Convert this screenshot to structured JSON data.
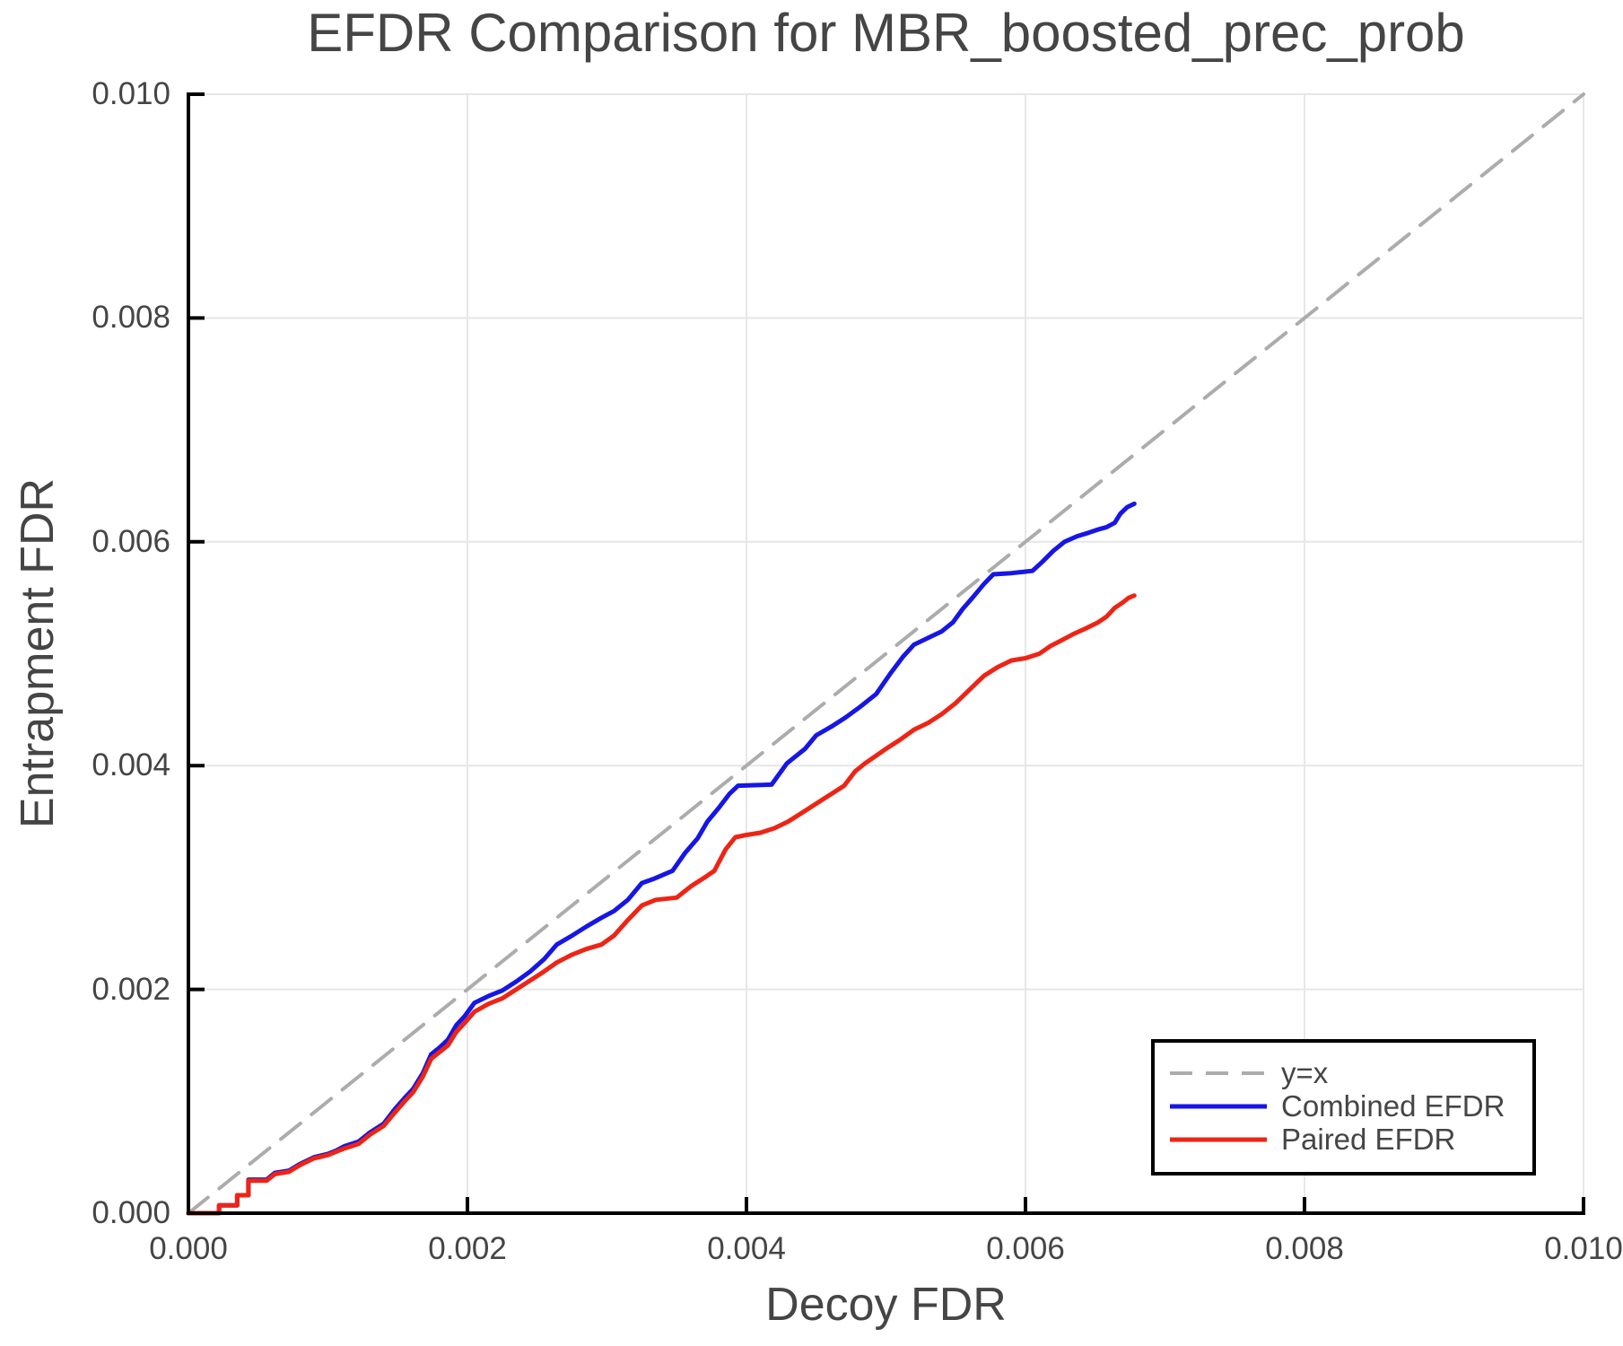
{
  "chart_data": {
    "type": "line",
    "title": "EFDR Comparison for MBR_boosted_prec_prob",
    "xlabel": "Decoy FDR",
    "ylabel": "Entrapment FDR",
    "xlim": [
      0.0,
      0.01
    ],
    "ylim": [
      0.0,
      0.01
    ],
    "xticks": [
      0.0,
      0.002,
      0.004,
      0.006,
      0.008,
      0.01
    ],
    "yticks": [
      0.0,
      0.002,
      0.004,
      0.006,
      0.008,
      0.01
    ],
    "xtick_labels": [
      "0.000",
      "0.002",
      "0.004",
      "0.006",
      "0.008",
      "0.010"
    ],
    "ytick_labels": [
      "0.000",
      "0.002",
      "0.004",
      "0.006",
      "0.008",
      "0.010"
    ],
    "grid": true,
    "legend_position": "lower right",
    "colors": {
      "grid": "#E7E7E7",
      "spine": "#000000",
      "text": "#454545",
      "background": "#FFFFFF"
    },
    "series": [
      {
        "name": "y=x",
        "role": "reference-diagonal",
        "color": "#ACACAC",
        "width": 4,
        "dash": [
          28,
          16
        ],
        "points": [
          [
            0.0,
            0.0
          ],
          [
            0.01,
            0.01
          ]
        ]
      },
      {
        "name": "Combined EFDR",
        "role": "data",
        "color": "#1616E6",
        "width": 5,
        "points": [
          [
            0.0,
            0.0
          ],
          [
            0.00022,
            0.0
          ],
          [
            0.00022,
            7e-05
          ],
          [
            0.00035,
            7e-05
          ],
          [
            0.00035,
            0.00016
          ],
          [
            0.00043,
            0.00016
          ],
          [
            0.00043,
            0.0003
          ],
          [
            0.00056,
            0.0003
          ],
          [
            0.00062,
            0.00036
          ],
          [
            0.00072,
            0.00038
          ],
          [
            0.0008,
            0.00044
          ],
          [
            0.0009,
            0.0005
          ],
          [
            0.001,
            0.00053
          ],
          [
            0.00106,
            0.00056
          ],
          [
            0.00112,
            0.0006
          ],
          [
            0.00122,
            0.00064
          ],
          [
            0.0013,
            0.00072
          ],
          [
            0.0014,
            0.0008
          ],
          [
            0.00148,
            0.00093
          ],
          [
            0.00155,
            0.00103
          ],
          [
            0.00161,
            0.00111
          ],
          [
            0.00168,
            0.00125
          ],
          [
            0.00174,
            0.00142
          ],
          [
            0.0018,
            0.00148
          ],
          [
            0.00186,
            0.00155
          ],
          [
            0.00192,
            0.00168
          ],
          [
            0.00198,
            0.00176
          ],
          [
            0.00205,
            0.00188
          ],
          [
            0.00215,
            0.00194
          ],
          [
            0.00225,
            0.00199
          ],
          [
            0.00235,
            0.00207
          ],
          [
            0.00245,
            0.00216
          ],
          [
            0.00255,
            0.00227
          ],
          [
            0.00264,
            0.0024
          ],
          [
            0.00275,
            0.00248
          ],
          [
            0.00285,
            0.00256
          ],
          [
            0.00296,
            0.00264
          ],
          [
            0.00305,
            0.0027
          ],
          [
            0.00315,
            0.0028
          ],
          [
            0.00325,
            0.00295
          ],
          [
            0.00334,
            0.00299
          ],
          [
            0.00347,
            0.00306
          ],
          [
            0.00356,
            0.00322
          ],
          [
            0.00365,
            0.00335
          ],
          [
            0.00372,
            0.0035
          ],
          [
            0.0038,
            0.00362
          ],
          [
            0.00388,
            0.00375
          ],
          [
            0.00394,
            0.00382
          ],
          [
            0.00418,
            0.00383
          ],
          [
            0.00429,
            0.00402
          ],
          [
            0.00435,
            0.00408
          ],
          [
            0.00442,
            0.00415
          ],
          [
            0.0045,
            0.00427
          ],
          [
            0.00461,
            0.00435
          ],
          [
            0.00471,
            0.00443
          ],
          [
            0.00482,
            0.00453
          ],
          [
            0.00493,
            0.00464
          ],
          [
            0.00503,
            0.00482
          ],
          [
            0.00512,
            0.00497
          ],
          [
            0.0052,
            0.00508
          ],
          [
            0.0053,
            0.00514
          ],
          [
            0.0054,
            0.0052
          ],
          [
            0.00548,
            0.00528
          ],
          [
            0.00555,
            0.0054
          ],
          [
            0.00562,
            0.0055
          ],
          [
            0.0057,
            0.00562
          ],
          [
            0.00577,
            0.00571
          ],
          [
            0.0059,
            0.00572
          ],
          [
            0.00605,
            0.00574
          ],
          [
            0.00612,
            0.00582
          ],
          [
            0.0062,
            0.00592
          ],
          [
            0.00628,
            0.006
          ],
          [
            0.00637,
            0.00605
          ],
          [
            0.00645,
            0.00608
          ],
          [
            0.00652,
            0.00611
          ],
          [
            0.00658,
            0.00613
          ],
          [
            0.00664,
            0.00617
          ],
          [
            0.00668,
            0.00625
          ],
          [
            0.00673,
            0.00631
          ],
          [
            0.00678,
            0.00634
          ]
        ]
      },
      {
        "name": "Paired EFDR",
        "role": "data",
        "color": "#EE2415",
        "width": 5,
        "points": [
          [
            0.0,
            0.0
          ],
          [
            0.00022,
            0.0
          ],
          [
            0.00022,
            7e-05
          ],
          [
            0.00035,
            7e-05
          ],
          [
            0.00035,
            0.00016
          ],
          [
            0.00043,
            0.00016
          ],
          [
            0.00043,
            0.00029
          ],
          [
            0.00056,
            0.00029
          ],
          [
            0.00062,
            0.00035
          ],
          [
            0.00072,
            0.00037
          ],
          [
            0.0008,
            0.00043
          ],
          [
            0.0009,
            0.00049
          ],
          [
            0.001,
            0.00052
          ],
          [
            0.00106,
            0.00055
          ],
          [
            0.00112,
            0.00058
          ],
          [
            0.00122,
            0.00062
          ],
          [
            0.0013,
            0.0007
          ],
          [
            0.0014,
            0.00078
          ],
          [
            0.00148,
            0.0009
          ],
          [
            0.00155,
            0.001
          ],
          [
            0.00161,
            0.00108
          ],
          [
            0.00168,
            0.00122
          ],
          [
            0.00174,
            0.00138
          ],
          [
            0.0018,
            0.00144
          ],
          [
            0.00186,
            0.0015
          ],
          [
            0.00192,
            0.00162
          ],
          [
            0.00198,
            0.0017
          ],
          [
            0.00205,
            0.0018
          ],
          [
            0.00215,
            0.00187
          ],
          [
            0.00225,
            0.00192
          ],
          [
            0.00235,
            0.002
          ],
          [
            0.00245,
            0.00208
          ],
          [
            0.00255,
            0.00216
          ],
          [
            0.00264,
            0.00224
          ],
          [
            0.00275,
            0.00231
          ],
          [
            0.00285,
            0.00236
          ],
          [
            0.00296,
            0.0024
          ],
          [
            0.00305,
            0.00248
          ],
          [
            0.00315,
            0.00262
          ],
          [
            0.00325,
            0.00275
          ],
          [
            0.00335,
            0.0028
          ],
          [
            0.0035,
            0.00282
          ],
          [
            0.0036,
            0.00292
          ],
          [
            0.0037,
            0.003
          ],
          [
            0.00377,
            0.00306
          ],
          [
            0.00385,
            0.00325
          ],
          [
            0.00392,
            0.00336
          ],
          [
            0.004,
            0.00338
          ],
          [
            0.0041,
            0.0034
          ],
          [
            0.0042,
            0.00344
          ],
          [
            0.0043,
            0.0035
          ],
          [
            0.0044,
            0.00358
          ],
          [
            0.0045,
            0.00366
          ],
          [
            0.0046,
            0.00374
          ],
          [
            0.0047,
            0.00382
          ],
          [
            0.00478,
            0.00395
          ],
          [
            0.00485,
            0.00402
          ],
          [
            0.00492,
            0.00408
          ],
          [
            0.005,
            0.00415
          ],
          [
            0.0051,
            0.00423
          ],
          [
            0.0052,
            0.00432
          ],
          [
            0.0053,
            0.00438
          ],
          [
            0.0054,
            0.00446
          ],
          [
            0.0055,
            0.00456
          ],
          [
            0.0056,
            0.00468
          ],
          [
            0.0057,
            0.0048
          ],
          [
            0.0058,
            0.00488
          ],
          [
            0.0059,
            0.00494
          ],
          [
            0.006,
            0.00496
          ],
          [
            0.0061,
            0.005
          ],
          [
            0.00618,
            0.00507
          ],
          [
            0.00626,
            0.00512
          ],
          [
            0.00635,
            0.00518
          ],
          [
            0.00644,
            0.00523
          ],
          [
            0.00652,
            0.00528
          ],
          [
            0.00658,
            0.00533
          ],
          [
            0.00664,
            0.00541
          ],
          [
            0.0067,
            0.00546
          ],
          [
            0.00674,
            0.0055
          ],
          [
            0.00678,
            0.00552
          ]
        ]
      }
    ]
  }
}
